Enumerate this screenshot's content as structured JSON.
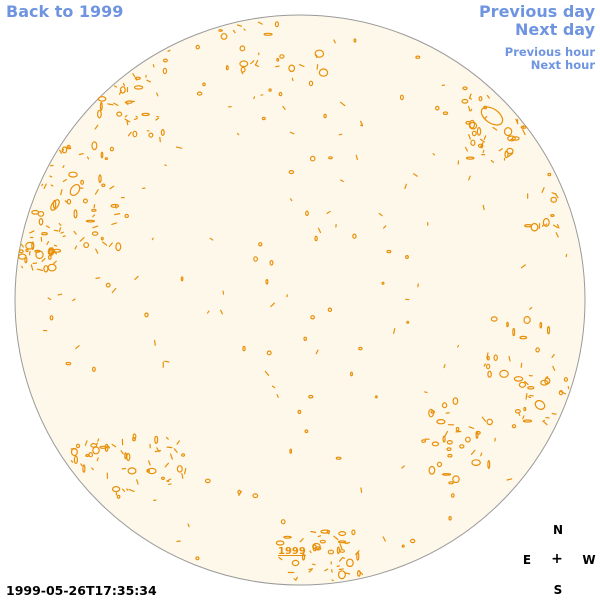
{
  "nav": {
    "back_label": "Back to 1999",
    "prev_day_label": "Previous day",
    "next_day_label": "Next day",
    "prev_hour_label": "Previous hour",
    "next_hour_label": "Next hour"
  },
  "disk": {
    "fill_color": "#fef8ea",
    "border_color": "#9a9a9a",
    "contour_color": "#e8900a",
    "year_label": "1999"
  },
  "compass": {
    "north": "N",
    "east": "E",
    "center": "+",
    "west": "W",
    "south": "S"
  },
  "timestamp": "1999-05-26T17:35:34",
  "colors": {
    "link": "#6f95e0",
    "contour": "#e8900a"
  }
}
